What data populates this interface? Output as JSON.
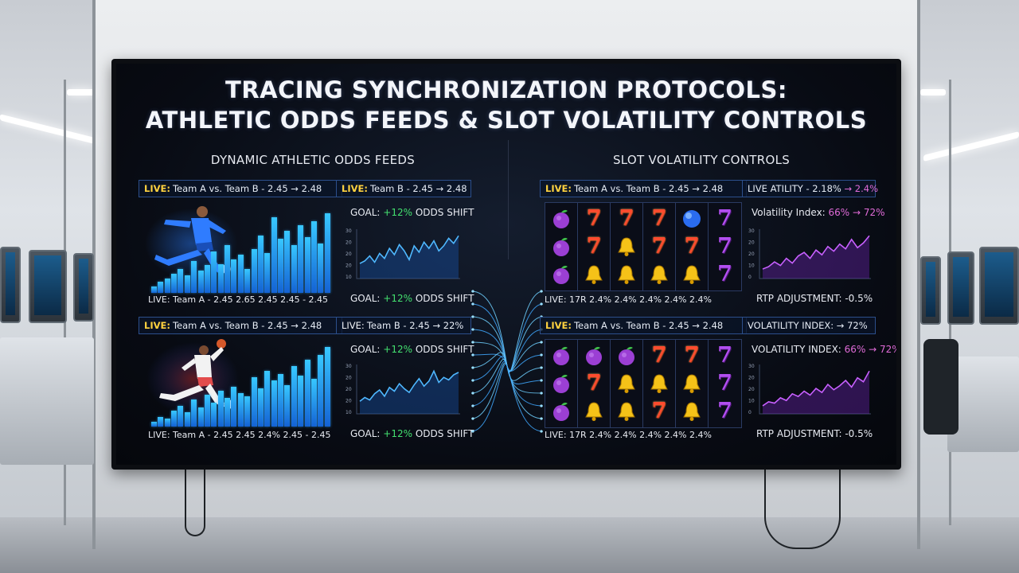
{
  "screen": {
    "title_line1": "TRACING SYNCHRONIZATION PROTOCOLS:",
    "title_line2": "ATHLETIC ODDS FEEDS & SLOT VOLATILITY CONTROLS"
  },
  "left_panel": {
    "heading": "DYNAMIC ATHLETIC ODDS FEEDS",
    "upper": {
      "ticker_a_live": "LIVE:",
      "ticker_a_text": "Team A vs. Team B - 2.45 → 2.48",
      "ticker_b_live": "LIVE:",
      "ticker_b_text": "Team B - 2.45 → 2.48",
      "goal_top_prefix": "GOAL: ",
      "goal_top_value": "+12%",
      "goal_top_suffix": " ODDS SHIFT",
      "footer": "LIVE: Team A - 2.45    2.65    2.45    2.45  - 2.45",
      "goal_bottom_prefix": "GOAL: ",
      "goal_bottom_value": "+12%",
      "goal_bottom_suffix": " ODDS SHIFT",
      "bar_levels": [
        0.08,
        0.14,
        0.18,
        0.24,
        0.3,
        0.22,
        0.4,
        0.28,
        0.35,
        0.52,
        0.36,
        0.6,
        0.42,
        0.48,
        0.3,
        0.55,
        0.72,
        0.5,
        0.95,
        0.68,
        0.78,
        0.6,
        0.85,
        0.7,
        0.9,
        0.62,
        1.0
      ],
      "line_values": [
        12,
        14,
        18,
        13,
        20,
        16,
        24,
        19,
        27,
        22,
        15,
        26,
        21,
        29,
        24,
        30,
        22,
        26,
        32,
        28,
        34
      ],
      "y_ticks": [
        "30",
        "20",
        "20",
        "20",
        "10"
      ]
    },
    "lower": {
      "ticker_a_live": "LIVE:",
      "ticker_a_text": "Team A vs. Team B - 2.45 → 2.48",
      "ticker_b_live": "LIVE:",
      "ticker_b_text": "Team B - 2.45 → 22%",
      "goal_top_prefix": "GOAL: ",
      "goal_top_value": "+12%",
      "goal_top_suffix": " ODDS SHIFT",
      "footer": "LIVE: Team A - 2.45    2.45    2.4%    2.45    - 2.45",
      "goal_bottom_prefix": "GOAL: ",
      "goal_bottom_value": "+12%",
      "goal_bottom_suffix": " ODDS SHIFT",
      "bar_levels": [
        0.06,
        0.12,
        0.1,
        0.2,
        0.26,
        0.18,
        0.34,
        0.24,
        0.4,
        0.3,
        0.45,
        0.36,
        0.5,
        0.42,
        0.38,
        0.62,
        0.48,
        0.7,
        0.58,
        0.66,
        0.52,
        0.76,
        0.64,
        0.84,
        0.6,
        0.9,
        1.0
      ],
      "line_values": [
        10,
        13,
        11,
        16,
        19,
        14,
        21,
        18,
        24,
        20,
        17,
        23,
        28,
        22,
        26,
        34,
        25,
        29,
        27,
        31,
        33
      ],
      "y_ticks": [
        "30",
        "20",
        "20",
        "20",
        "10"
      ]
    }
  },
  "right_panel": {
    "heading": "SLOT VOLATILITY CONTROLS",
    "upper": {
      "ticker_a_live": "LIVE:",
      "ticker_a_text": "Team A vs. Team B - 2.45 → 2.48",
      "ticker_b_text": "LIVE ATILITY - 2.18%",
      "ticker_b_value": "→ 2.4%",
      "vol_label": "Volatility Index: ",
      "vol_value": "66% → 72%",
      "reels_footer": "LIVE: 17R    2.4%    2.4%    2.4%    2.4%    2.4%",
      "rtp": "RTP ADJUSTMENT: -0.5%",
      "reels": [
        [
          "plum-icon",
          "plum-icon",
          "plum-icon"
        ],
        [
          "seven-red-icon",
          "seven-red-icon",
          "bell-icon"
        ],
        [
          "seven-red-icon",
          "bell-icon",
          "bell-icon"
        ],
        [
          "seven-red-icon",
          "seven-red-icon",
          "bell-icon"
        ],
        [
          "orb-icon",
          "seven-red-icon",
          "bell-icon"
        ],
        [
          "seven-purple-icon",
          "seven-purple-icon",
          "seven-purple-icon"
        ]
      ],
      "line_values": [
        8,
        10,
        14,
        11,
        17,
        13,
        19,
        22,
        17,
        24,
        20,
        27,
        23,
        29,
        25,
        33,
        26,
        30,
        36
      ],
      "y_ticks": [
        "30",
        "20",
        "20",
        "10",
        "0"
      ]
    },
    "lower": {
      "ticker_a_live": "LIVE:",
      "ticker_a_text": "Team A vs. Team B - 2.45 → 2.48",
      "ticker_b_text": "VOLATILITY INDEX: → 72%",
      "vol_label": "VOLATILITY INDEX: ",
      "vol_value": "66% → 72%",
      "reels_footer": "LIVE: 17R    2.4%    2.4%    2.4%    2.4%    2.4%",
      "rtp": "RTP ADJUSTMENT: -0.5%",
      "reels": [
        [
          "plum-icon",
          "plum-icon",
          "plum-icon"
        ],
        [
          "plum-icon",
          "seven-red-icon",
          "bell-icon"
        ],
        [
          "plum-icon",
          "bell-icon",
          "bell-icon"
        ],
        [
          "seven-red-icon",
          "bell-icon",
          "seven-red-icon"
        ],
        [
          "seven-red-icon",
          "bell-icon",
          "bell-icon"
        ],
        [
          "seven-purple-icon",
          "seven-purple-icon",
          "seven-purple-icon"
        ]
      ],
      "line_values": [
        6,
        9,
        8,
        12,
        10,
        15,
        13,
        17,
        14,
        19,
        16,
        22,
        18,
        21,
        25,
        20,
        27,
        24,
        32
      ],
      "y_ticks": [
        "30",
        "20",
        "20",
        "10",
        "0"
      ]
    }
  }
}
